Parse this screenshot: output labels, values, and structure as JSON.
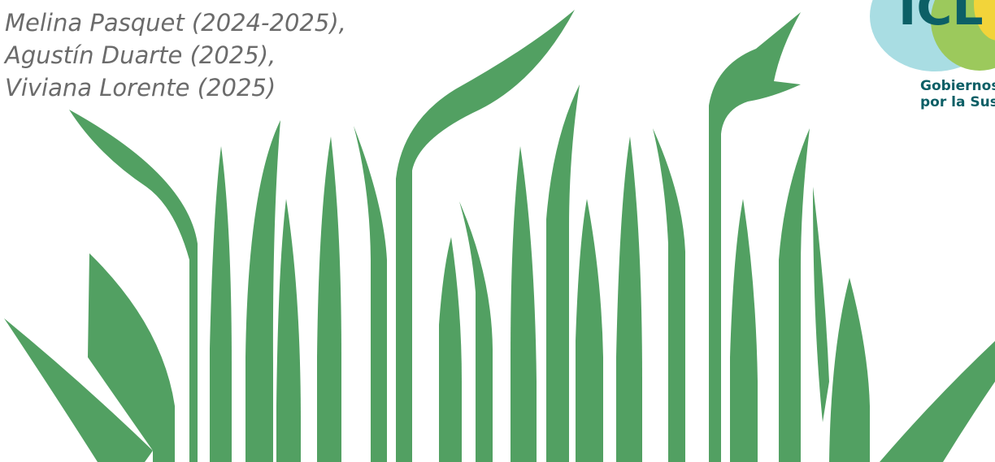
{
  "authors": [
    "Melina Pasquet (2024-2025),",
    "Agustín Duarte (2025),",
    "Viviana Lorente (2025)"
  ],
  "logo": {
    "mark": "ICL",
    "line1": "Gobiernos",
    "line2": "por la Sust"
  }
}
